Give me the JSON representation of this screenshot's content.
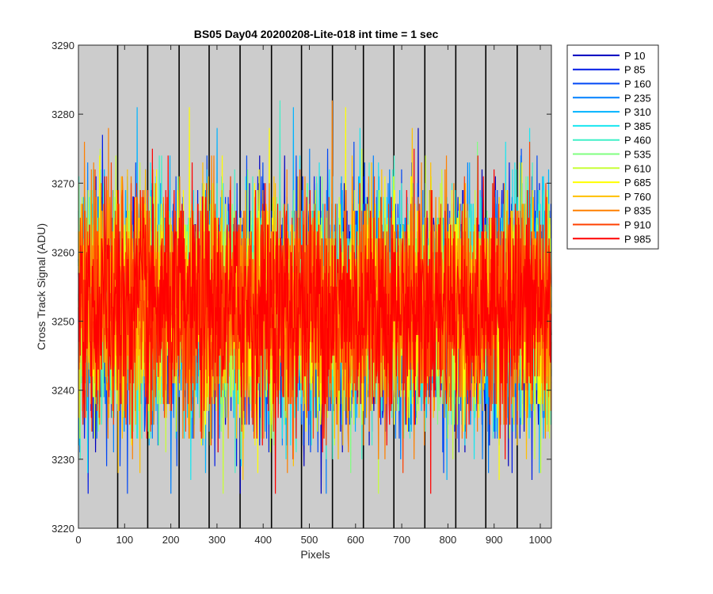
{
  "chart_data": {
    "type": "line",
    "title": "BS05 Day04 20200208-Lite-018 int time = 1 sec",
    "xlabel": "Pixels",
    "ylabel": "Cross Track Signal (ADU)",
    "xlim": [
      0,
      1024
    ],
    "ylim": [
      3220,
      3290
    ],
    "xticks": [
      0,
      100,
      200,
      300,
      400,
      500,
      600,
      700,
      800,
      900,
      1000
    ],
    "yticks": [
      3220,
      3230,
      3240,
      3250,
      3260,
      3270,
      3280,
      3290
    ],
    "background_color": "#cccccc",
    "grid": false,
    "vertical_lines_x": [
      85,
      150,
      218,
      283,
      350,
      418,
      483,
      550,
      617,
      683,
      750,
      817,
      882,
      950
    ],
    "legend_position": "outside-top-right",
    "noise": {
      "mean": 3252,
      "std": 8,
      "min": 3225,
      "max": 3282,
      "points_per_series": 1024
    },
    "series": [
      {
        "name": "P 10",
        "color": "#0000bf"
      },
      {
        "name": "P 85",
        "color": "#0019e6"
      },
      {
        "name": "P 160",
        "color": "#0047f5"
      },
      {
        "name": "P 235",
        "color": "#0080ff"
      },
      {
        "name": "P 310",
        "color": "#00b3ff"
      },
      {
        "name": "P 385",
        "color": "#19e6f0"
      },
      {
        "name": "P 460",
        "color": "#40f0c8"
      },
      {
        "name": "P 535",
        "color": "#80ff80"
      },
      {
        "name": "P 610",
        "color": "#c8ff37"
      },
      {
        "name": "P 685",
        "color": "#ffff00"
      },
      {
        "name": "P 760",
        "color": "#ffbf00"
      },
      {
        "name": "P 835",
        "color": "#ff8000"
      },
      {
        "name": "P 910",
        "color": "#ff4000"
      },
      {
        "name": "P 985",
        "color": "#ff0000"
      }
    ]
  }
}
